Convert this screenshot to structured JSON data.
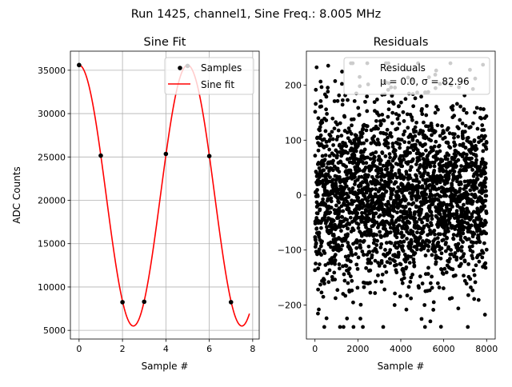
{
  "figure": {
    "suptitle": "Run 1425, channel1, Sine Freq.: 8.005 MHz"
  },
  "chart_data": [
    {
      "type": "scatter",
      "title": "Sine Fit",
      "xlabel": "Sample #",
      "ylabel": "ADC Counts",
      "xlim": [
        -0.4,
        8.3
      ],
      "ylim": [
        4000,
        37200
      ],
      "x_ticks": [
        0,
        2,
        4,
        6,
        8
      ],
      "y_ticks": [
        5000,
        10000,
        15000,
        20000,
        25000,
        30000,
        35000
      ],
      "grid": true,
      "legend": {
        "position": "top-right",
        "entries": [
          {
            "label": "Samples",
            "marker": "dot",
            "color": "#000000"
          },
          {
            "label": "Sine fit",
            "marker": "line",
            "color": "#ff0000"
          }
        ]
      },
      "series": [
        {
          "name": "Samples",
          "kind": "points",
          "color": "#000000",
          "x": [
            0,
            1,
            2,
            3,
            4,
            5,
            6,
            7
          ],
          "y": [
            35600,
            25150,
            8250,
            8300,
            25350,
            35500,
            25100,
            8250
          ]
        },
        {
          "name": "Sine fit",
          "kind": "curve",
          "color": "#ff0000",
          "x": [
            0.0,
            0.5,
            1.0,
            1.5,
            2.0,
            2.5,
            3.0,
            3.5,
            4.0,
            4.5,
            5.0,
            5.5,
            6.0,
            6.5,
            7.0,
            7.5,
            7.85
          ],
          "y": [
            35600,
            32900,
            25150,
            16300,
            8250,
            5500,
            8300,
            16400,
            25350,
            33000,
            35500,
            32800,
            25100,
            16100,
            8250,
            5500,
            7300
          ]
        }
      ]
    },
    {
      "type": "scatter",
      "title": "Residuals",
      "xlabel": "Sample #",
      "ylabel": "",
      "xlim": [
        -400,
        8400
      ],
      "ylim": [
        -262,
        262
      ],
      "x_ticks": [
        0,
        2000,
        4000,
        6000,
        8000
      ],
      "y_ticks": [
        -200,
        -100,
        0,
        100,
        200
      ],
      "grid": false,
      "legend": {
        "position": "top-right",
        "entries": [
          {
            "label": "Residuals",
            "marker": "none"
          },
          {
            "label": "μ = 0.0, σ = 82.96",
            "marker": "none"
          }
        ]
      },
      "series": [
        {
          "name": "Residuals",
          "kind": "points",
          "color": "#000000",
          "n_points": 8000,
          "x_range": [
            0,
            8000
          ],
          "mean": 0.0,
          "std": 82.96,
          "max_abs": 240
        }
      ]
    }
  ]
}
